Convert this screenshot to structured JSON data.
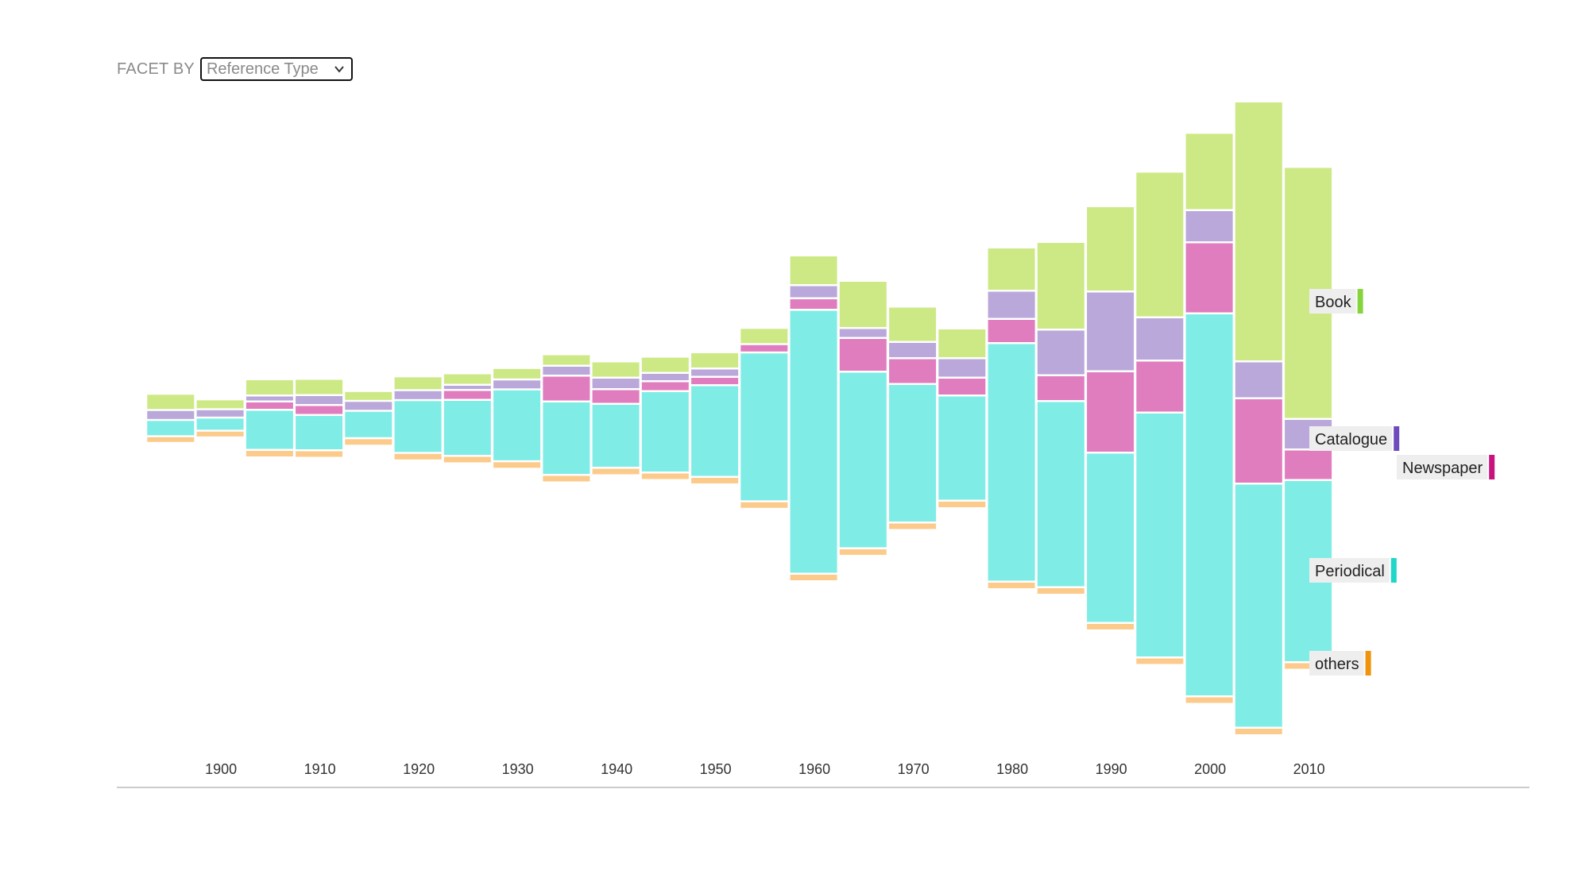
{
  "facet": {
    "label": "FACET BY",
    "selected": "Reference Type"
  },
  "colors": {
    "Book": "#cde985",
    "Catalogue": "#b9a8d9",
    "Newspaper": "#e07dbe",
    "Periodical": "#80ece6",
    "others": "#fccb8c"
  },
  "legend": [
    {
      "name": "Book",
      "swatch": "#86d43c"
    },
    {
      "name": "Catalogue",
      "swatch": "#6e4bbd"
    },
    {
      "name": "Newspaper",
      "swatch": "#c8127e"
    },
    {
      "name": "Periodical",
      "swatch": "#20d6c8"
    },
    {
      "name": "others",
      "swatch": "#f0920c"
    }
  ],
  "chart_data": {
    "type": "bar",
    "subtype": "streamgraph-stacked-bar",
    "stack_order_top_to_bottom": [
      "Book",
      "Catalogue",
      "Newspaper",
      "Periodical",
      "others"
    ],
    "categories": [
      1895,
      1900,
      1905,
      1910,
      1915,
      1920,
      1925,
      1930,
      1935,
      1940,
      1945,
      1950,
      1955,
      1960,
      1965,
      1970,
      1975,
      1980,
      1985,
      1990,
      1995,
      2000,
      2005,
      2010
    ],
    "x_ticks": [
      "1900",
      "1910",
      "1920",
      "1930",
      "1940",
      "1950",
      "1960",
      "1970",
      "1980",
      "1990",
      "2000",
      "2010"
    ],
    "series": [
      {
        "name": "Book",
        "values": [
          18,
          10,
          18,
          18,
          10,
          15,
          12,
          12,
          12,
          18,
          18,
          18,
          18,
          35,
          57,
          42,
          35,
          52,
          108,
          105,
          181,
          95,
          325,
          315
        ]
      },
      {
        "name": "Catalogue",
        "values": [
          10,
          8,
          5,
          10,
          10,
          10,
          4,
          10,
          10,
          12,
          8,
          8,
          0,
          14,
          10,
          18,
          22,
          33,
          55,
          98,
          52,
          38,
          44,
          36
        ]
      },
      {
        "name": "Newspaper",
        "values": [
          0,
          0,
          8,
          10,
          0,
          0,
          10,
          0,
          30,
          16,
          10,
          8,
          8,
          12,
          40,
          30,
          20,
          28,
          30,
          100,
          63,
          87,
          105,
          36
        ]
      },
      {
        "name": "Periodical",
        "values": [
          18,
          14,
          48,
          42,
          32,
          64,
          68,
          88,
          90,
          78,
          100,
          113,
          185,
          330,
          220,
          172,
          130,
          298,
          232,
          212,
          306,
          480,
          305,
          227
        ]
      },
      {
        "name": "others",
        "values": [
          6,
          6,
          7,
          7,
          7,
          7,
          7,
          7,
          7,
          7,
          7,
          7,
          7,
          7,
          7,
          7,
          7,
          7,
          7,
          7,
          7,
          7,
          7,
          7
        ]
      }
    ],
    "title": "",
    "xlabel": "",
    "ylabel": "",
    "x_range": [
      1892,
      2014
    ],
    "grid": false,
    "legend_position": "right"
  }
}
